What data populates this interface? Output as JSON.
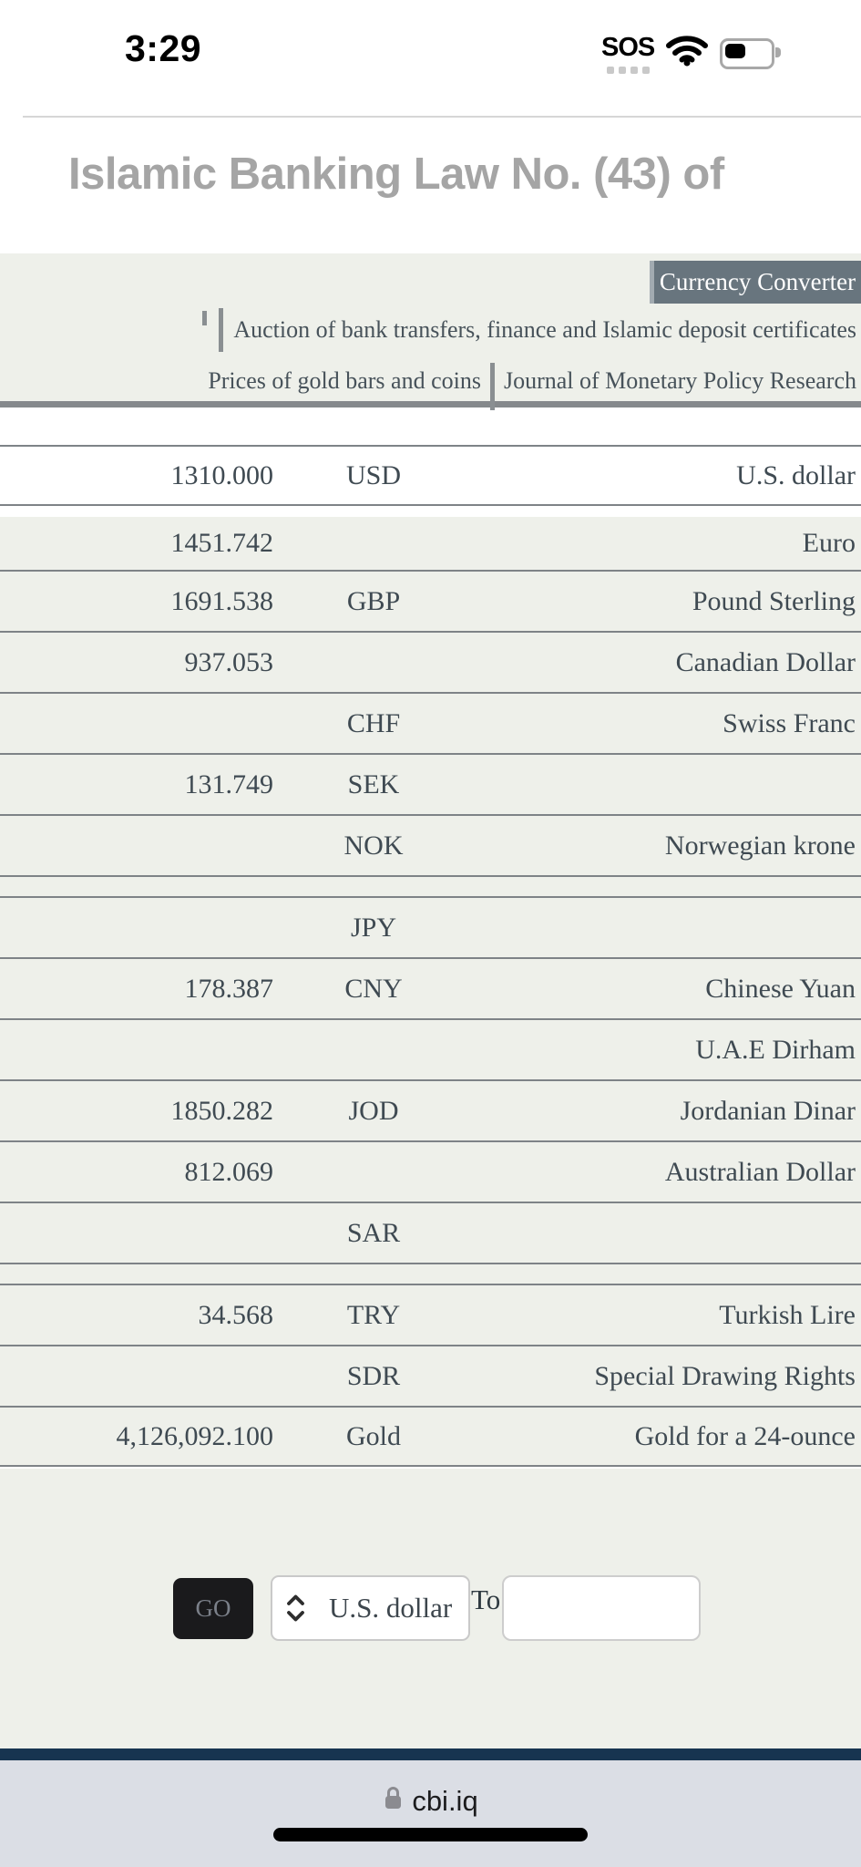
{
  "status_bar": {
    "time": "3:29",
    "carrier": "SOS"
  },
  "page": {
    "title": "Islamic Banking Law No. (43) of"
  },
  "nav_panel": {
    "badge": "Currency Converter",
    "links": [
      "Auction of bank transfers, finance and Islamic deposit certificates",
      "Prices of gold bars and coins",
      "Journal of Monetary Policy Research"
    ]
  },
  "rates_table": {
    "rows": [
      {
        "value": "1310.000",
        "code": "USD",
        "name": "U.S. dollar",
        "thin": false,
        "highlight": true
      },
      {
        "value": "1451.742",
        "code": "",
        "name": "Euro",
        "thin": false
      },
      {
        "value": "1691.538",
        "code": "GBP",
        "name": "Pound Sterling",
        "thin": false
      },
      {
        "value": "937.053",
        "code": "",
        "name": "Canadian Dollar",
        "thin": false
      },
      {
        "value": "",
        "code": "CHF",
        "name": "Swiss Franc",
        "thin": false
      },
      {
        "value": "131.749",
        "code": "SEK",
        "name": "",
        "thin": false
      },
      {
        "value": "",
        "code": "NOK",
        "name": "Norwegian krone",
        "thin": false
      },
      {
        "value": "",
        "code": "",
        "name": "",
        "thin": true
      },
      {
        "value": "",
        "code": "JPY",
        "name": "",
        "thin": false
      },
      {
        "value": "178.387",
        "code": "CNY",
        "name": "Chinese Yuan",
        "thin": false
      },
      {
        "value": "",
        "code": "",
        "name": "U.A.E Dirham",
        "thin": false
      },
      {
        "value": "1850.282",
        "code": "JOD",
        "name": "Jordanian Dinar",
        "thin": false
      },
      {
        "value": "812.069",
        "code": "",
        "name": "Australian Dollar",
        "thin": false
      },
      {
        "value": "",
        "code": "SAR",
        "name": "",
        "thin": false
      },
      {
        "value": "",
        "code": "",
        "name": "",
        "thin": true
      },
      {
        "value": "34.568",
        "code": "TRY",
        "name": "Turkish Lire",
        "thin": false
      },
      {
        "value": "",
        "code": "SDR",
        "name": "Special Drawing Rights",
        "thin": false
      },
      {
        "value": "4,126,092.100",
        "code": "Gold",
        "name": "Gold for a 24-ounce",
        "thin": false
      }
    ]
  },
  "converter": {
    "go_label": "GO",
    "from_currency": "U.S. dollar",
    "to_label": "To",
    "amount_value": ""
  },
  "browser": {
    "url": "cbi.iq"
  },
  "colors": {
    "panel-bg": "#eef0ea",
    "row-bg": "#eef0ea",
    "badge-bg": "#68757e",
    "go-bg": "#1a1a1c",
    "navy": "#173450"
  }
}
